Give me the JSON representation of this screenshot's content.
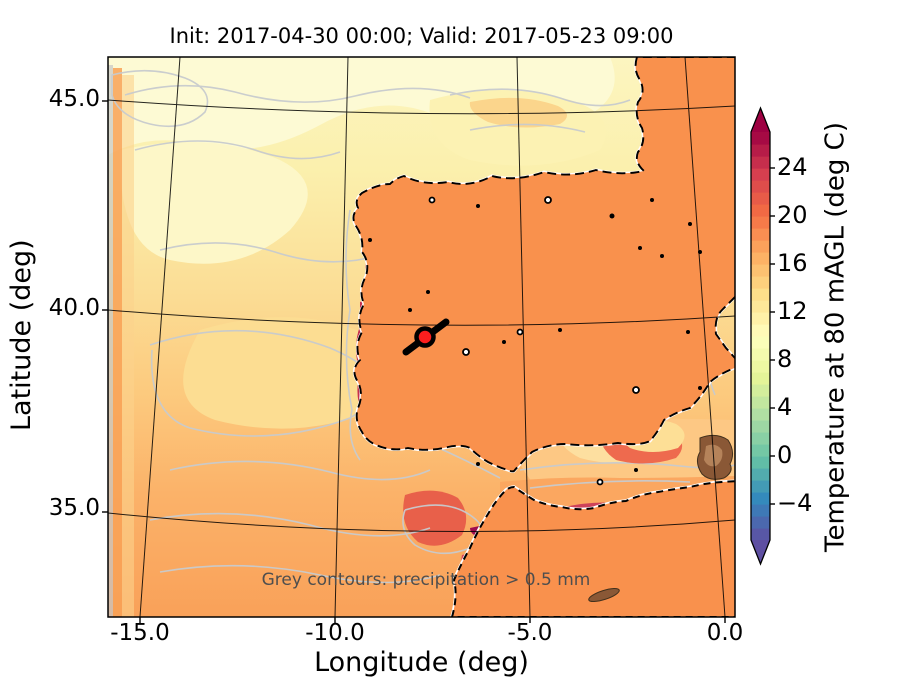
{
  "title": "Init: 2017-04-30 00:00; Valid: 2017-05-23 09:00",
  "axes": {
    "x_label": "Longitude (deg)",
    "y_label": "Latitude (deg)",
    "x_ticks": [
      "-15.0",
      "-10.0",
      "-5.0",
      "0.0"
    ],
    "y_ticks": [
      "45.0",
      "40.0",
      "35.0"
    ]
  },
  "annotation": "Grey contours: precipitation > 0.5 mm",
  "colorbar": {
    "label": "Temperature at 80 mAGL (deg C)",
    "ticks": [
      "24",
      "20",
      "16",
      "12",
      "8",
      "4",
      "0",
      "−4"
    ],
    "tick_values": [
      24,
      20,
      16,
      12,
      8,
      4,
      0,
      -4
    ],
    "range": [
      -7,
      27
    ],
    "units": "deg C",
    "palette": [
      "#5e4fa2",
      "#3288bd",
      "#66c2a5",
      "#abdda4",
      "#e6f598",
      "#ffffbf",
      "#fee08b",
      "#fdae61",
      "#f46d43",
      "#d53e4f",
      "#9e0142"
    ]
  },
  "map": {
    "extent_lon": [
      -15.8,
      0.3
    ],
    "extent_lat": [
      32.4,
      46.1
    ],
    "marker_lonlat": [
      -7.7,
      39.4
    ],
    "marker_color": "#fb1e1e",
    "precip_contour_color": "#c8cbce",
    "land_hot_color": "#c5304e",
    "magenta_core_color": "#9e0d4e"
  }
}
